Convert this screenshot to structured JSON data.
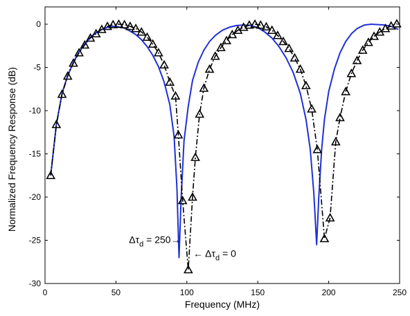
{
  "chart_data": {
    "type": "line",
    "title": "",
    "xlabel": "Frequency (MHz)",
    "ylabel": "Normalized Frequency Response (dB)",
    "xlim": [
      0,
      250
    ],
    "ylim": [
      -30,
      2
    ],
    "x_ticks": [
      0,
      50,
      100,
      150,
      200,
      250
    ],
    "y_ticks": [
      0,
      -5,
      -10,
      -15,
      -20,
      -25,
      -30
    ],
    "grid": false,
    "legend": "none",
    "series": [
      {
        "line_style": "solid",
        "color": "#1f2fd6",
        "marker": "none",
        "points": [
          [
            4,
            -17.5
          ],
          [
            8,
            -11.6
          ],
          [
            12,
            -8.0
          ],
          [
            16,
            -5.9
          ],
          [
            20,
            -4.4
          ],
          [
            24,
            -3.2
          ],
          [
            28,
            -2.3
          ],
          [
            32,
            -1.5
          ],
          [
            36,
            -1.0
          ],
          [
            40,
            -0.6
          ],
          [
            44,
            -0.35
          ],
          [
            48,
            -0.25
          ],
          [
            52,
            -0.3
          ],
          [
            56,
            -0.45
          ],
          [
            60,
            -0.8
          ],
          [
            64,
            -1.2
          ],
          [
            68,
            -1.8
          ],
          [
            72,
            -2.6
          ],
          [
            76,
            -3.6
          ],
          [
            80,
            -4.9
          ],
          [
            84,
            -6.7
          ],
          [
            88,
            -9.3
          ],
          [
            91,
            -13.0
          ],
          [
            93,
            -19.0
          ],
          [
            94.5,
            -27.0
          ],
          [
            96,
            -20.0
          ],
          [
            98,
            -13.5
          ],
          [
            101,
            -9.5
          ],
          [
            104,
            -6.5
          ],
          [
            108,
            -4.4
          ],
          [
            112,
            -3.0
          ],
          [
            116,
            -2.0
          ],
          [
            120,
            -1.3
          ],
          [
            125,
            -0.7
          ],
          [
            130,
            -0.35
          ],
          [
            135,
            -0.15
          ],
          [
            140,
            -0.1
          ],
          [
            145,
            -0.15
          ],
          [
            150,
            -0.4
          ],
          [
            155,
            -0.9
          ],
          [
            160,
            -1.6
          ],
          [
            165,
            -2.6
          ],
          [
            170,
            -3.9
          ],
          [
            175,
            -5.6
          ],
          [
            180,
            -8.0
          ],
          [
            184,
            -11.0
          ],
          [
            187,
            -14.5
          ],
          [
            189.5,
            -19.5
          ],
          [
            191.5,
            -25.5
          ],
          [
            193,
            -20.0
          ],
          [
            195,
            -14.5
          ],
          [
            197,
            -11.0
          ],
          [
            200,
            -7.8
          ],
          [
            204,
            -5.2
          ],
          [
            208,
            -3.3
          ],
          [
            212,
            -2.0
          ],
          [
            216,
            -1.1
          ],
          [
            220,
            -0.5
          ],
          [
            225,
            -0.1
          ],
          [
            230,
            0.0
          ],
          [
            235,
            -0.05
          ],
          [
            240,
            -0.1
          ],
          [
            245,
            -0.3
          ],
          [
            249,
            -0.6
          ]
        ]
      },
      {
        "line_style": "dash-dot",
        "color": "#000000",
        "marker": "triangle",
        "points": [
          [
            4,
            -17.5
          ],
          [
            8,
            -11.6
          ],
          [
            12,
            -8.1
          ],
          [
            16,
            -6.0
          ],
          [
            20,
            -4.5
          ],
          [
            24,
            -3.3
          ],
          [
            28,
            -2.4
          ],
          [
            32,
            -1.6
          ],
          [
            36,
            -1.1
          ],
          [
            40,
            -0.6
          ],
          [
            44,
            -0.25
          ],
          [
            48,
            -0.05
          ],
          [
            52,
            0.0
          ],
          [
            56,
            -0.05
          ],
          [
            60,
            -0.25
          ],
          [
            64,
            -0.5
          ],
          [
            68,
            -0.9
          ],
          [
            72,
            -1.5
          ],
          [
            76,
            -2.3
          ],
          [
            80,
            -3.3
          ],
          [
            84,
            -4.7
          ],
          [
            88,
            -6.7
          ],
          [
            92,
            -8.3
          ],
          [
            94,
            -12.8
          ],
          [
            97,
            -20.4
          ],
          [
            101,
            -28.4
          ],
          [
            104,
            -20.0
          ],
          [
            106,
            -15.4
          ],
          [
            109,
            -10.4
          ],
          [
            112,
            -7.4
          ],
          [
            116,
            -5.2
          ],
          [
            120,
            -3.7
          ],
          [
            124,
            -2.7
          ],
          [
            128,
            -1.9
          ],
          [
            132,
            -1.2
          ],
          [
            136,
            -0.7
          ],
          [
            140,
            -0.35
          ],
          [
            144,
            -0.1
          ],
          [
            148,
            0.0
          ],
          [
            152,
            -0.1
          ],
          [
            156,
            -0.3
          ],
          [
            160,
            -0.7
          ],
          [
            164,
            -1.3
          ],
          [
            168,
            -2.0
          ],
          [
            172,
            -2.8
          ],
          [
            176,
            -3.9
          ],
          [
            180,
            -5.2
          ],
          [
            184,
            -7.1
          ],
          [
            188,
            -9.8
          ],
          [
            192,
            -14.5
          ],
          [
            197,
            -24.8
          ],
          [
            201,
            -22.4
          ],
          [
            205,
            -13.6
          ],
          [
            208,
            -10.8
          ],
          [
            212,
            -7.8
          ],
          [
            216,
            -5.7
          ],
          [
            220,
            -4.2
          ],
          [
            224,
            -3.0
          ],
          [
            228,
            -2.1
          ],
          [
            232,
            -1.4
          ],
          [
            236,
            -0.9
          ],
          [
            240,
            -0.5
          ],
          [
            244,
            -0.2
          ],
          [
            248,
            0.05
          ]
        ]
      }
    ],
    "annotations": [
      {
        "base": "Δτ",
        "sub": "d",
        "tail": " = 250",
        "arrow_after": "→",
        "anchor": [
          95.5,
          -25.3
        ],
        "align": "end"
      },
      {
        "arrow_before": "← ",
        "base": "Δτ",
        "sub": "d",
        "tail": " = 0",
        "anchor": [
          104.5,
          -26.9
        ],
        "align": "start"
      }
    ]
  }
}
